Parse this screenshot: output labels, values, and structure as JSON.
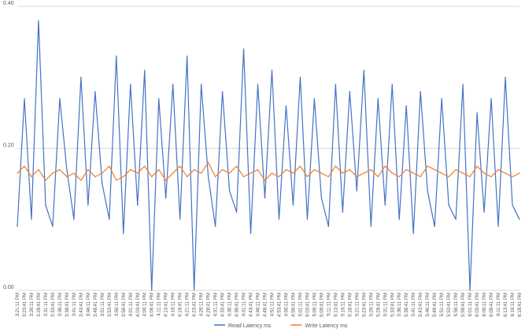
{
  "chart_data": {
    "type": "line",
    "ylim": [
      0,
      0.4
    ],
    "yticks": [
      "0.00",
      "0.20",
      "0.40"
    ],
    "grid": true,
    "legend_placement": "bottom",
    "categories": [
      "3:21:11 PM",
      "3:23:41 PM",
      "3:26:11 PM",
      "3:28:41 PM",
      "3:31:11 PM",
      "3:33:41 PM",
      "3:36:11 PM",
      "3:38:41 PM",
      "3:41:11 PM",
      "3:43:41 PM",
      "3:46:11 PM",
      "3:48:41 PM",
      "3:51:11 PM",
      "3:53:41 PM",
      "3:56:11 PM",
      "3:58:41 PM",
      "4:01:11 PM",
      "4:03:41 PM",
      "4:06:11 PM",
      "4:08:41 PM",
      "4:11:11 PM",
      "4:13:41 PM",
      "4:16:11 PM",
      "4:18:41 PM",
      "4:21:11 PM",
      "4:23:41 PM",
      "4:26:11 PM",
      "4:28:41 PM",
      "4:31:11 PM",
      "4:33:41 PM",
      "4:36:11 PM",
      "4:38:41 PM",
      "4:41:11 PM",
      "4:43:41 PM",
      "4:46:11 PM",
      "4:48:41 PM",
      "4:51:11 PM",
      "4:53:41 PM",
      "4:56:11 PM",
      "4:58:41 PM",
      "5:01:11 PM",
      "5:03:41 PM",
      "5:06:11 PM",
      "5:08:41 PM",
      "5:11:11 PM",
      "5:13:41 PM",
      "5:16:11 PM",
      "5:18:41 PM",
      "5:21:11 PM",
      "5:23:41 PM",
      "5:26:11 PM",
      "5:28:41 PM",
      "5:31:11 PM",
      "5:33:41 PM",
      "5:36:11 PM",
      "5:38:41 PM",
      "5:41:11 PM",
      "5:43:41 PM",
      "5:46:11 PM",
      "5:48:41 PM",
      "5:51:11 PM",
      "5:53:41 PM",
      "5:56:11 PM",
      "5:58:41 PM",
      "6:01:11 PM",
      "6:03:41 PM",
      "6:06:11 PM",
      "6:08:41 PM",
      "6:11:11 PM",
      "6:13:41 PM",
      "6:16:11 PM",
      "6:18:41 PM"
    ],
    "series": [
      {
        "name": "Read Latency ms",
        "color": "#4472C4",
        "values": [
          0.09,
          0.27,
          0.1,
          0.38,
          0.12,
          0.09,
          0.27,
          0.17,
          0.1,
          0.3,
          0.12,
          0.28,
          0.15,
          0.1,
          0.33,
          0.08,
          0.29,
          0.12,
          0.31,
          0.0,
          0.27,
          0.13,
          0.29,
          0.1,
          0.33,
          0.0,
          0.29,
          0.16,
          0.09,
          0.28,
          0.14,
          0.11,
          0.34,
          0.08,
          0.29,
          0.13,
          0.31,
          0.1,
          0.26,
          0.12,
          0.3,
          0.1,
          0.27,
          0.13,
          0.09,
          0.29,
          0.11,
          0.28,
          0.14,
          0.31,
          0.09,
          0.27,
          0.12,
          0.29,
          0.1,
          0.26,
          0.08,
          0.28,
          0.14,
          0.09,
          0.27,
          0.12,
          0.1,
          0.29,
          0.0,
          0.25,
          0.11,
          0.27,
          0.09,
          0.3,
          0.12,
          0.1
        ]
      },
      {
        "name": "Write Latency ms",
        "color": "#ED7D31",
        "values": [
          0.165,
          0.175,
          0.16,
          0.17,
          0.155,
          0.165,
          0.17,
          0.16,
          0.165,
          0.155,
          0.17,
          0.16,
          0.165,
          0.175,
          0.155,
          0.16,
          0.17,
          0.165,
          0.175,
          0.16,
          0.17,
          0.155,
          0.165,
          0.175,
          0.16,
          0.17,
          0.165,
          0.18,
          0.16,
          0.17,
          0.165,
          0.175,
          0.16,
          0.165,
          0.17,
          0.155,
          0.165,
          0.16,
          0.17,
          0.165,
          0.175,
          0.16,
          0.17,
          0.165,
          0.16,
          0.175,
          0.165,
          0.17,
          0.16,
          0.165,
          0.17,
          0.16,
          0.175,
          0.165,
          0.16,
          0.17,
          0.165,
          0.16,
          0.175,
          0.17,
          0.165,
          0.16,
          0.17,
          0.165,
          0.16,
          0.175,
          0.165,
          0.16,
          0.17,
          0.165,
          0.16,
          0.165
        ]
      }
    ]
  }
}
